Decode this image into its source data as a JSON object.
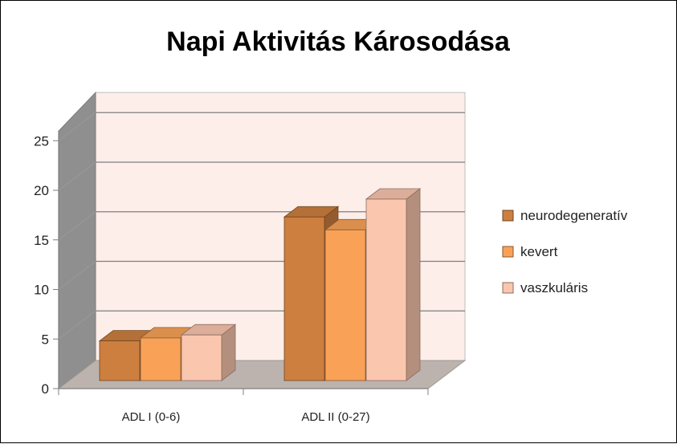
{
  "chart_data": {
    "type": "bar",
    "title": "Napi Aktivitás Károsodása",
    "categories": [
      "ADL I (0-6)",
      "ADL II (0-27)"
    ],
    "series": [
      {
        "name": "neurodegeneratív",
        "values": [
          4.0,
          16.5
        ],
        "color": "#CD7F3F"
      },
      {
        "name": "kevert",
        "values": [
          4.3,
          15.2
        ],
        "color": "#F9A257"
      },
      {
        "name": "vaszkuláris",
        "values": [
          4.6,
          18.3
        ],
        "color": "#FAC6AE"
      }
    ],
    "ylim": [
      0,
      25
    ],
    "yticks": [
      0,
      5,
      10,
      15,
      20,
      25
    ],
    "grid": true,
    "legend": "right",
    "style": "3d-clustered"
  }
}
